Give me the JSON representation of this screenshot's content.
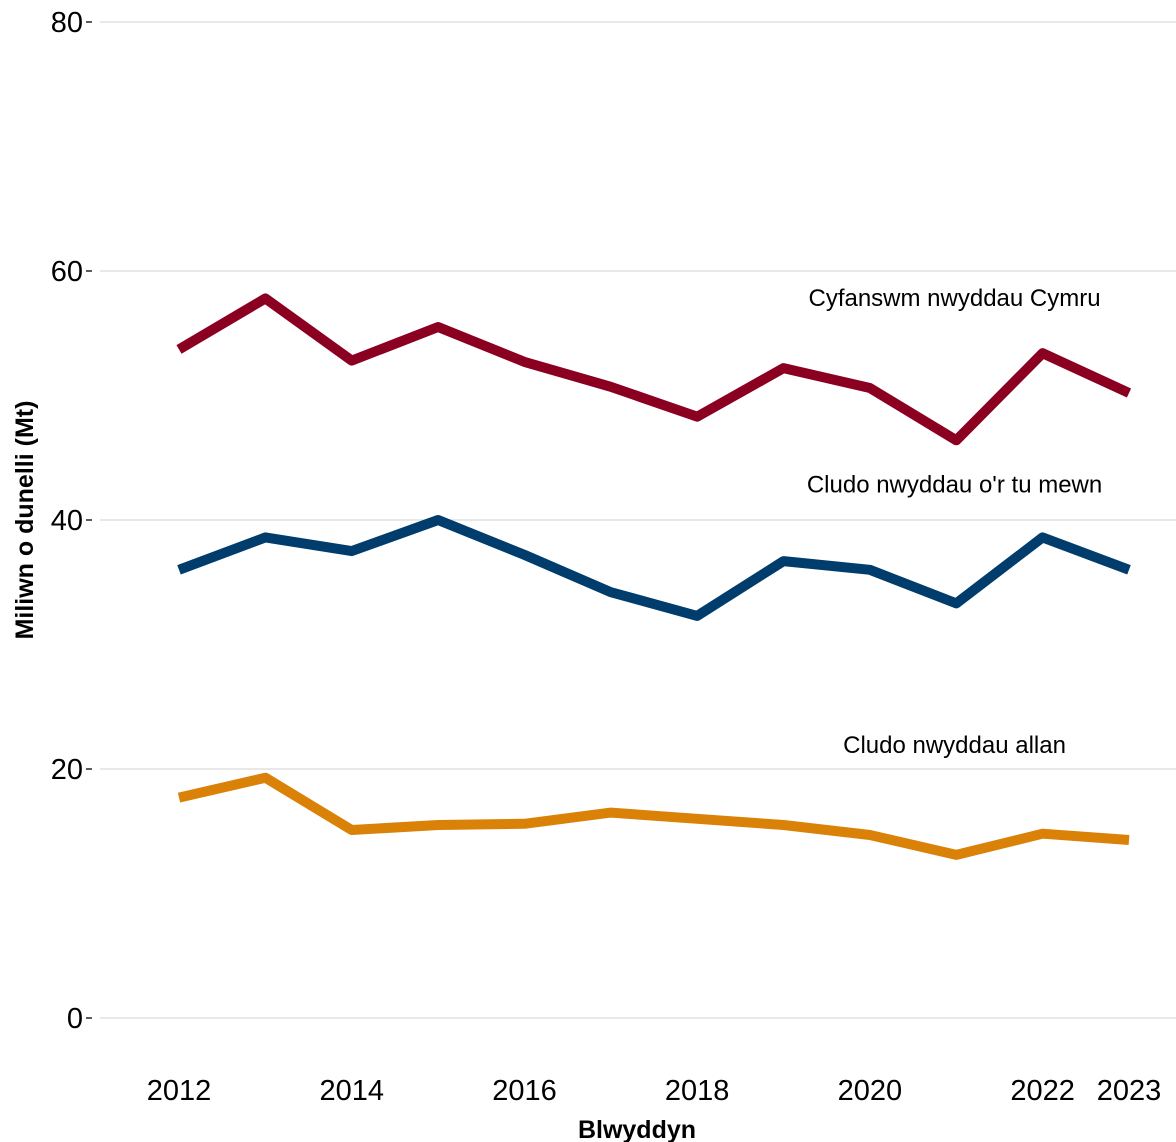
{
  "chart_data": {
    "type": "line",
    "xlabel": "Blwyddyn",
    "ylabel": "Miliwn o dunelli (Mt)",
    "xlim": [
      2011.5,
      2023.5
    ],
    "ylim": [
      0,
      80
    ],
    "x_ticks": [
      2012,
      2014,
      2016,
      2018,
      2020,
      2022,
      2023
    ],
    "y_ticks": [
      0,
      20,
      40,
      60,
      80
    ],
    "grid": "horizontal",
    "legend": "none",
    "x": [
      2012,
      2013,
      2014,
      2015,
      2016,
      2017,
      2018,
      2019,
      2020,
      2021,
      2022,
      2023
    ],
    "series": [
      {
        "name": "Cyfanswm nwyddau Cymru",
        "color": "#8b0021",
        "label_anchor": {
          "x": 2019.0,
          "y": 57.2
        },
        "values": [
          53.7,
          57.8,
          52.8,
          55.5,
          52.7,
          50.7,
          48.3,
          52.2,
          50.6,
          46.4,
          53.4,
          50.2
        ]
      },
      {
        "name": "Cludo nwyddau o'r tu mewn",
        "color": "#003c6c",
        "label_anchor": {
          "x": 2019.0,
          "y": 42.2
        },
        "values": [
          36.0,
          38.6,
          37.5,
          40.0,
          37.2,
          34.2,
          32.3,
          36.7,
          36.0,
          33.3,
          38.6,
          36.0
        ]
      },
      {
        "name": "Cludo nwyddau allan",
        "color": "#d98207",
        "label_anchor": {
          "x": 2019.0,
          "y": 21.3
        },
        "values": [
          17.7,
          19.3,
          15.1,
          15.5,
          15.6,
          16.5,
          16.0,
          15.5,
          14.7,
          13.1,
          14.8,
          14.3
        ]
      }
    ]
  }
}
